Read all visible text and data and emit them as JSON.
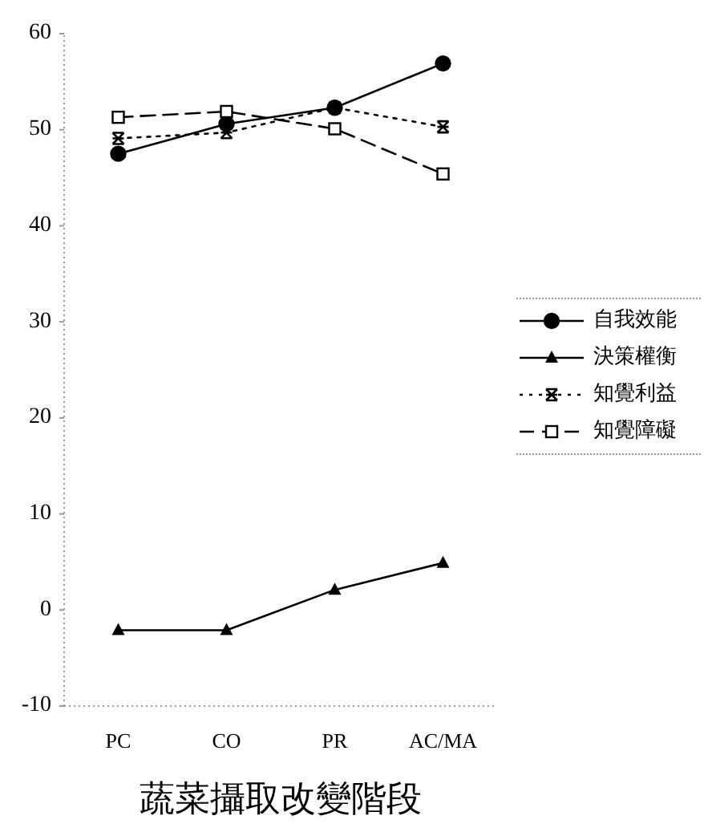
{
  "chart_data": {
    "type": "line",
    "xlabel": "蔬菜攝取改變階段",
    "categories": [
      "PC",
      "CO",
      "PR",
      "AC/MA"
    ],
    "ylim": [
      -10,
      60
    ],
    "yticks": [
      -10,
      0,
      10,
      20,
      30,
      40,
      50,
      60
    ],
    "grid": false,
    "legend": "right",
    "series": [
      {
        "name": "自我效能",
        "color": "#000000",
        "marker": "circle",
        "line_style": "solid",
        "values": [
          47.5,
          50.6,
          52.3,
          56.9
        ]
      },
      {
        "name": "決策權衡",
        "color": "#000000",
        "marker": "triangle",
        "line_style": "solid",
        "values": [
          -2.1,
          -2.1,
          2.1,
          4.9
        ]
      },
      {
        "name": "知覺利益",
        "color": "#000000",
        "marker": "cross",
        "line_style": "dotted",
        "values": [
          49.1,
          49.7,
          52.3,
          50.3
        ]
      },
      {
        "name": "知覺障礙",
        "color": "#000000",
        "marker": "square",
        "line_style": "dashed",
        "values": [
          51.3,
          51.9,
          50.1,
          45.4
        ]
      }
    ]
  }
}
